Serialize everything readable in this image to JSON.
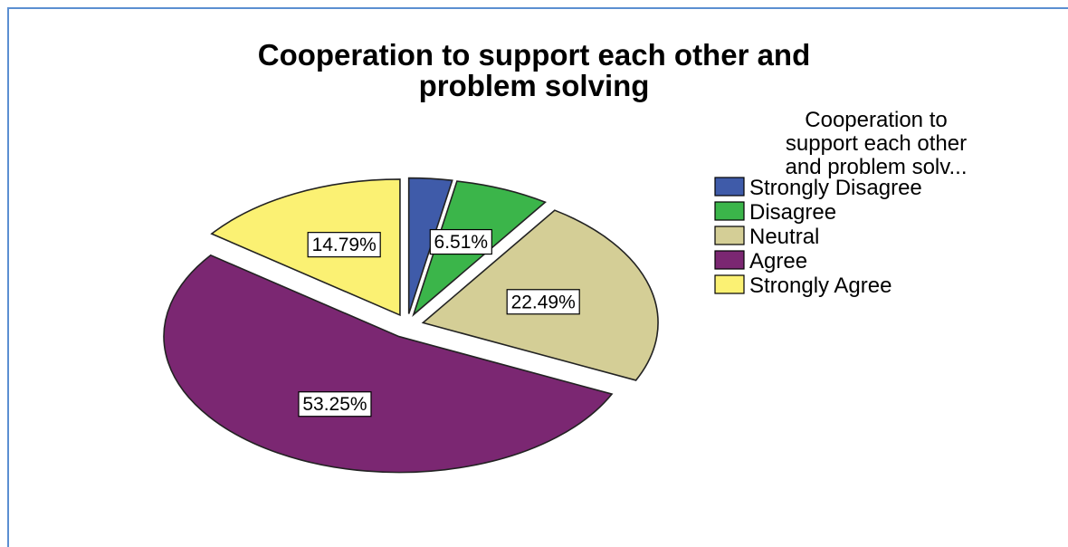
{
  "chart_data": {
    "type": "pie",
    "title": "Cooperation to support each other and\nproblem solving",
    "legend": {
      "title": "Cooperation to\nsupport each other\nand problem solv...",
      "placement": "right"
    },
    "categories": [
      "Strongly Disagree",
      "Disagree",
      "Neutral",
      "Agree",
      "Strongly Agree"
    ],
    "values": [
      2.96,
      6.51,
      22.49,
      53.25,
      14.79
    ],
    "labels": [
      "",
      "6.51%",
      "22.49%",
      "53.25%",
      "14.79%"
    ],
    "colors": [
      "#3f5ba9",
      "#3bb54a",
      "#d4ce96",
      "#7b2772",
      "#fbf173"
    ],
    "exploded": true
  }
}
